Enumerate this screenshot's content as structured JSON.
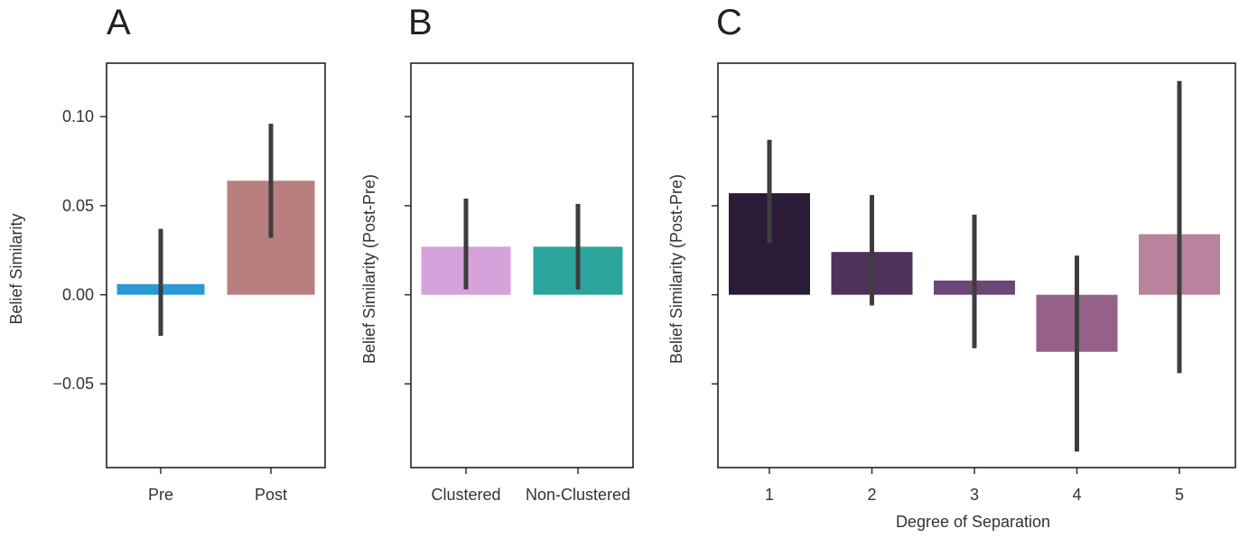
{
  "chart_data": [
    {
      "type": "bar",
      "panel": "A",
      "categories": [
        "Pre",
        "Post"
      ],
      "values": [
        0.006,
        0.064
      ],
      "ci": [
        [
          -0.023,
          0.037
        ],
        [
          0.032,
          0.096
        ]
      ],
      "colors": [
        "#2b98d6",
        "#b97f7f"
      ],
      "xlabel": "",
      "ylabel": "Belief Similarity",
      "ylim": [
        -0.097,
        0.13
      ],
      "yticks": [
        -0.05,
        0.0,
        0.05,
        0.1
      ],
      "ytick_labels": [
        "−0.05",
        "0.00",
        "0.05",
        "0.10"
      ]
    },
    {
      "type": "bar",
      "panel": "B",
      "categories": [
        "Clustered",
        "Non-Clustered"
      ],
      "values": [
        0.027,
        0.027
      ],
      "ci": [
        [
          0.003,
          0.054
        ],
        [
          0.003,
          0.051
        ]
      ],
      "colors": [
        "#d7a1db",
        "#2ba59c"
      ],
      "xlabel": "",
      "ylabel": "Belief Similarity (Post-Pre)",
      "ylim": [
        -0.097,
        0.13
      ],
      "yticks": [
        -0.05,
        0.0,
        0.05,
        0.1
      ],
      "ytick_labels": [
        "",
        "",
        "",
        ""
      ]
    },
    {
      "type": "bar",
      "panel": "C",
      "categories": [
        "1",
        "2",
        "3",
        "4",
        "5"
      ],
      "values": [
        0.057,
        0.024,
        0.008,
        -0.032,
        0.034
      ],
      "ci": [
        [
          0.029,
          0.087
        ],
        [
          -0.006,
          0.056
        ],
        [
          -0.03,
          0.045
        ],
        [
          -0.088,
          0.022
        ],
        [
          -0.044,
          0.12
        ]
      ],
      "colors": [
        "#2a1b37",
        "#4e3259",
        "#6b4677",
        "#956187",
        "#b9839d"
      ],
      "xlabel": "Degree of Separation",
      "ylabel": "Belief Similarity (Post-Pre)",
      "ylim": [
        -0.097,
        0.13
      ],
      "yticks": [
        -0.05,
        0.0,
        0.05,
        0.1
      ],
      "ytick_labels": [
        "",
        "",
        "",
        ""
      ]
    }
  ]
}
